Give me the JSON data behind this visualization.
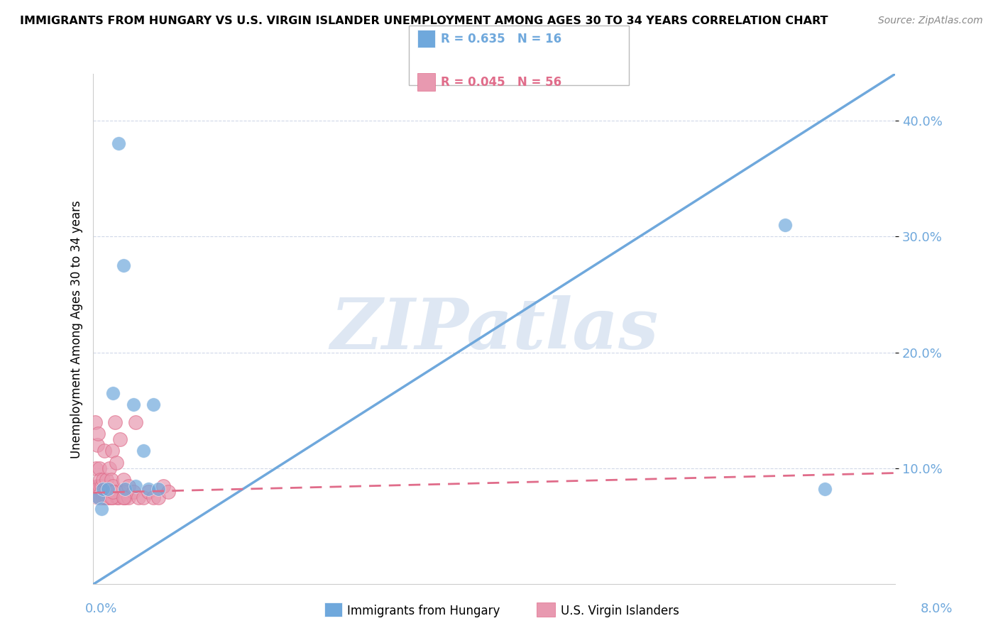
{
  "title": "IMMIGRANTS FROM HUNGARY VS U.S. VIRGIN ISLANDER UNEMPLOYMENT AMONG AGES 30 TO 34 YEARS CORRELATION CHART",
  "source": "Source: ZipAtlas.com",
  "ylabel": "Unemployment Among Ages 30 to 34 years",
  "xlim": [
    0.0,
    0.08
  ],
  "ylim": [
    0.0,
    0.44
  ],
  "yticks": [
    0.1,
    0.2,
    0.3,
    0.4
  ],
  "ytick_labels": [
    "10.0%",
    "20.0%",
    "30.0%",
    "40.0%"
  ],
  "legend_blue_r": "R = 0.635",
  "legend_blue_n": "N = 16",
  "legend_pink_r": "R = 0.045",
  "legend_pink_n": "N = 56",
  "legend_label_blue": "Immigrants from Hungary",
  "legend_label_pink": "U.S. Virgin Islanders",
  "blue_color": "#6fa8dc",
  "pink_color": "#e06c8a",
  "pink_scatter_color": "#e899b0",
  "blue_scatter": [
    [
      0.0005,
      0.075
    ],
    [
      0.0008,
      0.065
    ],
    [
      0.001,
      0.082
    ],
    [
      0.0015,
      0.082
    ],
    [
      0.002,
      0.165
    ],
    [
      0.0025,
      0.38
    ],
    [
      0.003,
      0.275
    ],
    [
      0.0032,
      0.082
    ],
    [
      0.004,
      0.155
    ],
    [
      0.0042,
      0.085
    ],
    [
      0.005,
      0.115
    ],
    [
      0.0055,
      0.082
    ],
    [
      0.006,
      0.155
    ],
    [
      0.0065,
      0.082
    ],
    [
      0.069,
      0.31
    ],
    [
      0.073,
      0.082
    ]
  ],
  "pink_scatter": [
    [
      0.0001,
      0.08
    ],
    [
      0.0002,
      0.14
    ],
    [
      0.0003,
      0.08
    ],
    [
      0.0003,
      0.1
    ],
    [
      0.0004,
      0.12
    ],
    [
      0.0004,
      0.085
    ],
    [
      0.0005,
      0.075
    ],
    [
      0.0005,
      0.13
    ],
    [
      0.0006,
      0.085
    ],
    [
      0.0006,
      0.1
    ],
    [
      0.0007,
      0.075
    ],
    [
      0.0007,
      0.09
    ],
    [
      0.0008,
      0.085
    ],
    [
      0.0008,
      0.08
    ],
    [
      0.0009,
      0.08
    ],
    [
      0.001,
      0.075
    ],
    [
      0.001,
      0.09
    ],
    [
      0.0011,
      0.115
    ],
    [
      0.0012,
      0.075
    ],
    [
      0.0012,
      0.08
    ],
    [
      0.0013,
      0.075
    ],
    [
      0.0013,
      0.09
    ],
    [
      0.0014,
      0.075
    ],
    [
      0.0015,
      0.08
    ],
    [
      0.0016,
      0.075
    ],
    [
      0.0016,
      0.1
    ],
    [
      0.0018,
      0.09
    ],
    [
      0.0019,
      0.115
    ],
    [
      0.002,
      0.075
    ],
    [
      0.002,
      0.085
    ],
    [
      0.0021,
      0.08
    ],
    [
      0.0022,
      0.14
    ],
    [
      0.0023,
      0.105
    ],
    [
      0.0024,
      0.075
    ],
    [
      0.0025,
      0.075
    ],
    [
      0.0026,
      0.08
    ],
    [
      0.0027,
      0.125
    ],
    [
      0.003,
      0.075
    ],
    [
      0.003,
      0.09
    ],
    [
      0.0031,
      0.08
    ],
    [
      0.0032,
      0.075
    ],
    [
      0.0035,
      0.085
    ],
    [
      0.0035,
      0.075
    ],
    [
      0.004,
      0.08
    ],
    [
      0.0042,
      0.14
    ],
    [
      0.0045,
      0.075
    ],
    [
      0.005,
      0.075
    ],
    [
      0.0055,
      0.08
    ],
    [
      0.006,
      0.075
    ],
    [
      0.0065,
      0.075
    ],
    [
      0.007,
      0.085
    ],
    [
      0.0075,
      0.08
    ],
    [
      0.0005,
      0.075
    ],
    [
      0.0018,
      0.075
    ],
    [
      0.002,
      0.08
    ],
    [
      0.003,
      0.075
    ]
  ],
  "blue_trendline_x": [
    0.0,
    0.08
  ],
  "blue_trendline_y": [
    0.0,
    0.44
  ],
  "pink_trendline_x": [
    0.0,
    0.08
  ],
  "pink_trendline_y": [
    0.079,
    0.096
  ],
  "watermark": "ZIPatlas",
  "watermark_color": "#c8d8ec",
  "background_color": "#ffffff",
  "grid_color": "#d0d8e8",
  "tick_label_color": "#6fa8dc"
}
